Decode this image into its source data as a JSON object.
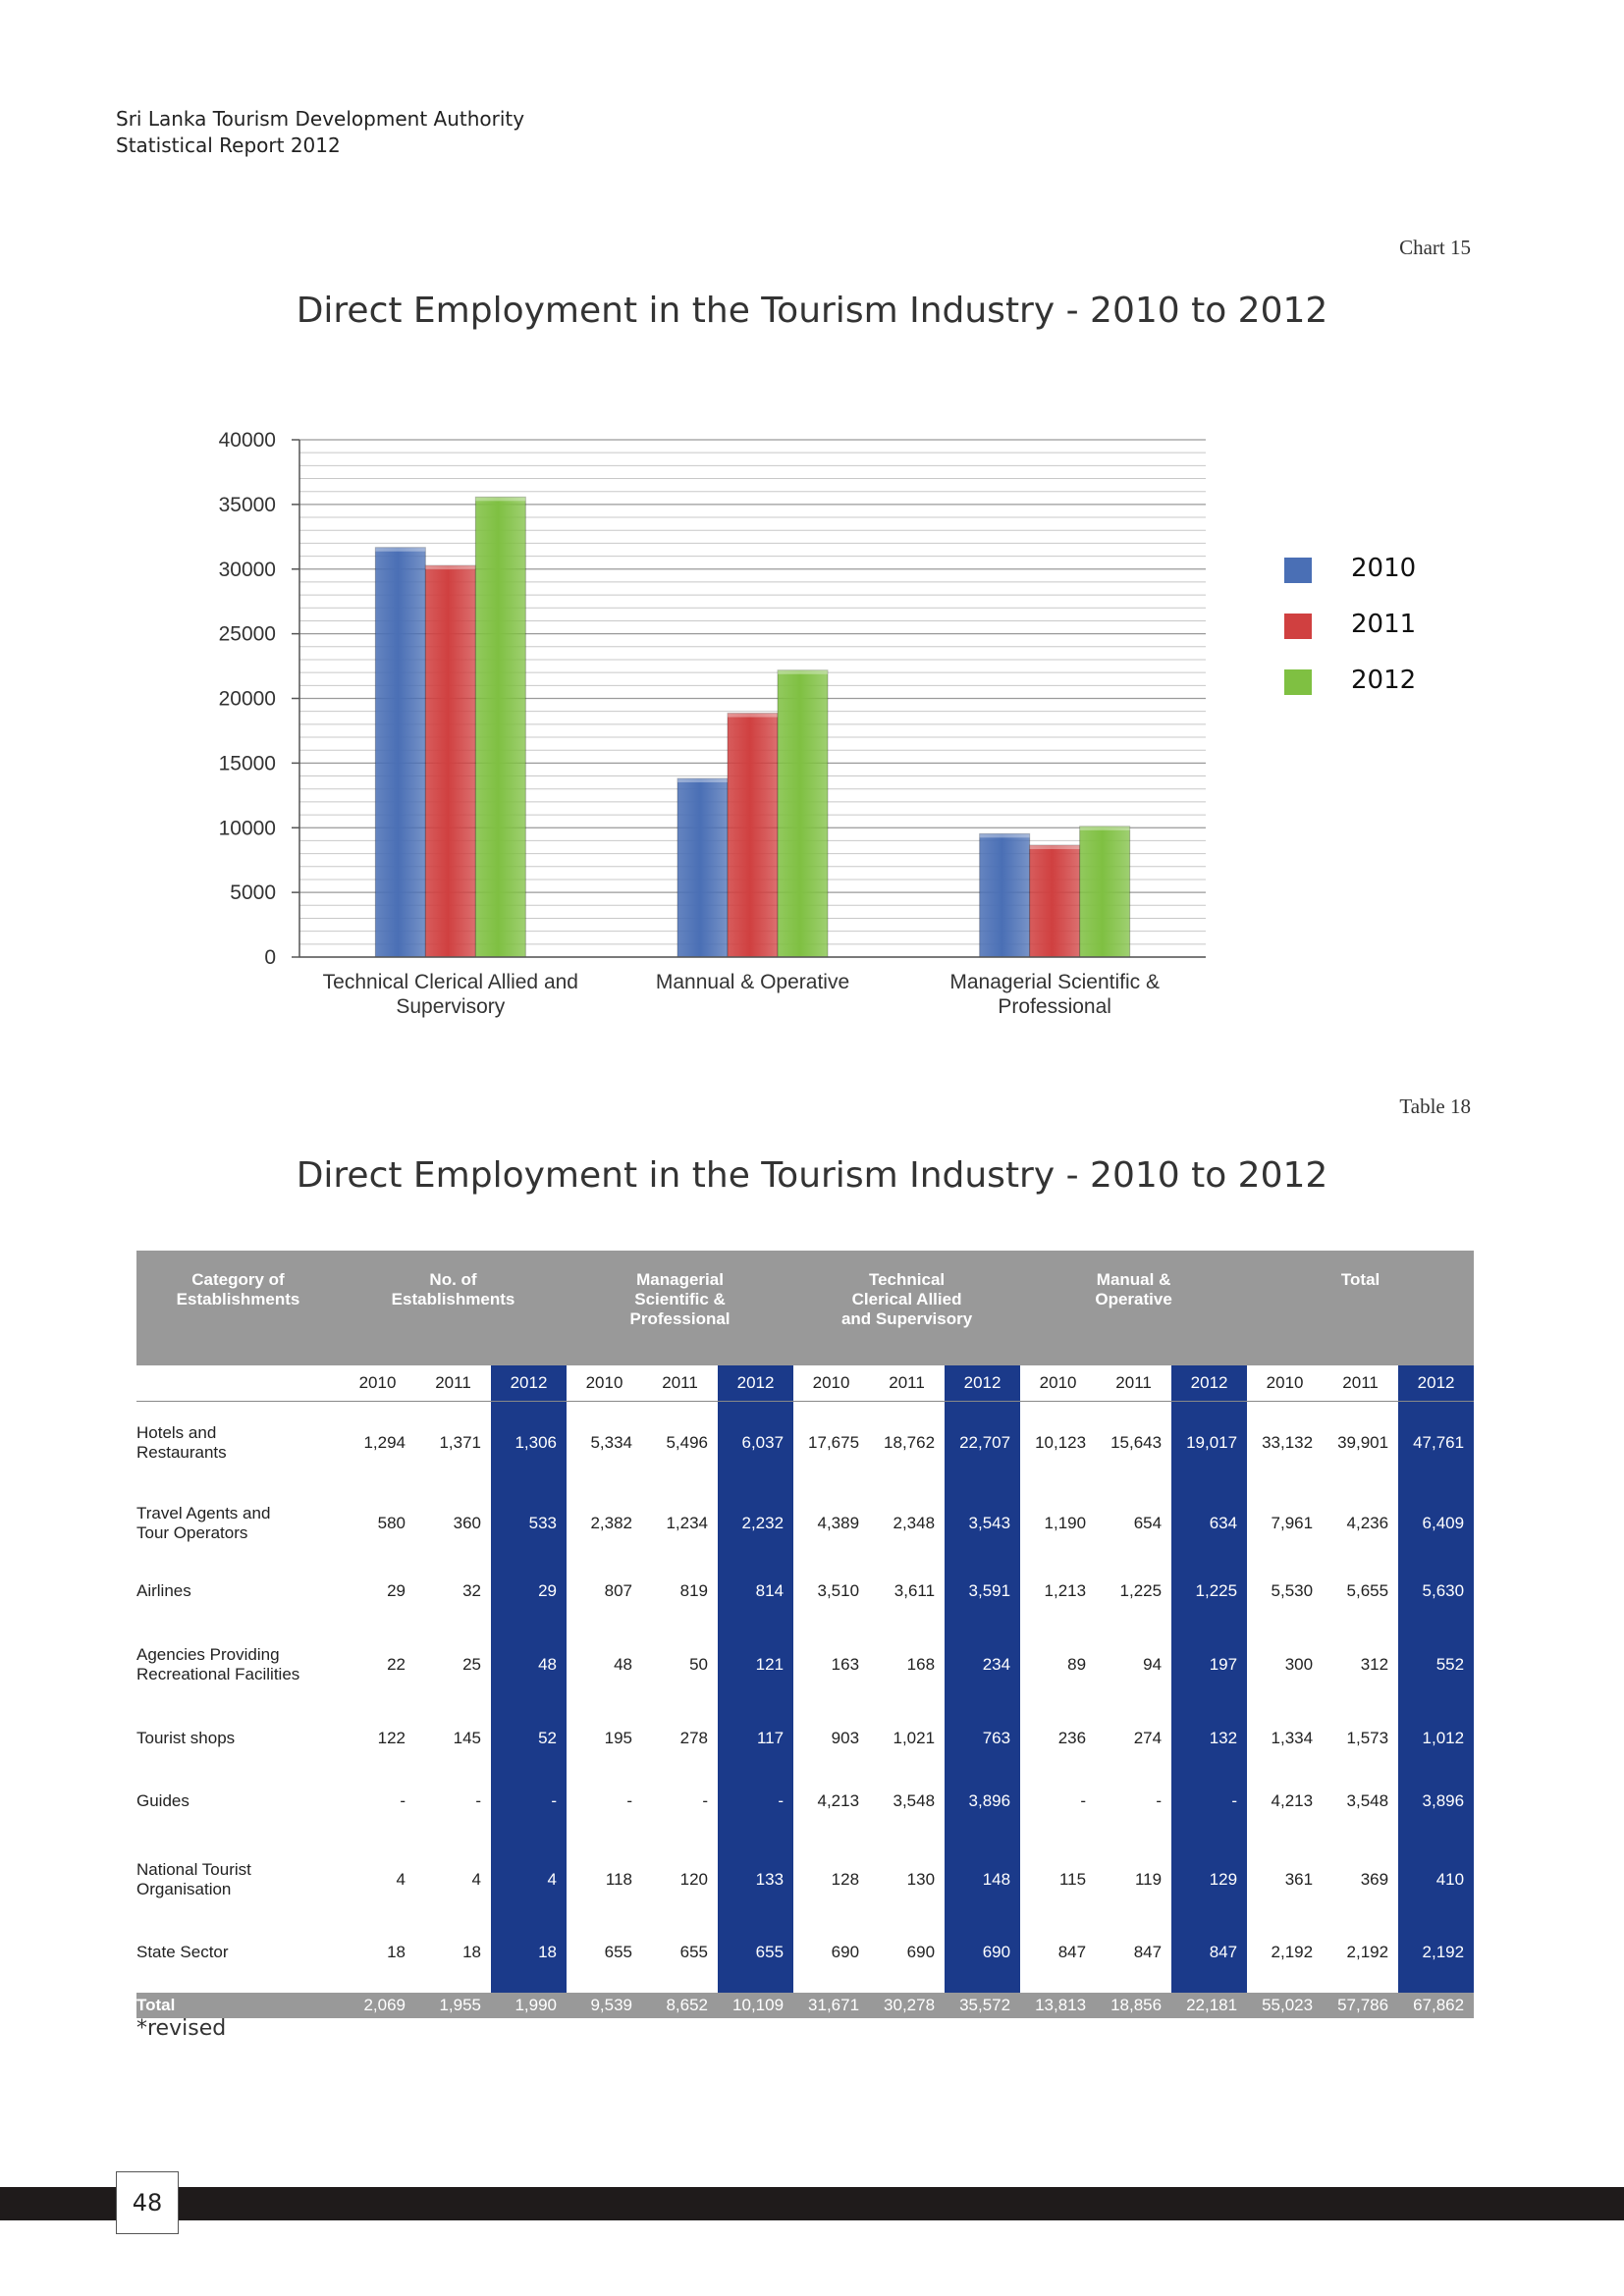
{
  "header": {
    "org": "Sri Lanka Tourism Development Authority",
    "report": "Statistical Report 2012"
  },
  "chart_ref": "Chart 15",
  "chart_title": "Direct Employment in the Tourism Industry - 2010 to 2012",
  "table_ref": "Table 18",
  "table_title": "Direct Employment in the Tourism Industry - 2010 to 2012",
  "chart_data": {
    "type": "bar",
    "title": "Direct Employment in the Tourism Industry - 2010 to 2012",
    "categories": [
      [
        "Technical Clerical Allied and",
        "Supervisory"
      ],
      [
        "Mannual & Operative"
      ],
      [
        "Managerial Scientific &",
        "Professional"
      ]
    ],
    "series": [
      {
        "name": "2010",
        "values": [
          31671,
          13813,
          9539
        ],
        "color": "#4a6fb5"
      },
      {
        "name": "2011",
        "values": [
          30278,
          18856,
          8652
        ],
        "color": "#d04040"
      },
      {
        "name": "2012",
        "values": [
          35572,
          22181,
          10109
        ],
        "color": "#7fc042"
      }
    ],
    "ylim": [
      0,
      40000
    ],
    "yticks": [
      "0",
      "5000",
      "10000",
      "15000",
      "20000",
      "25000",
      "30000",
      "35000",
      "40000"
    ],
    "ytick_values": [
      0,
      5000,
      10000,
      15000,
      20000,
      25000,
      30000,
      35000,
      40000
    ],
    "minor_step": 1000,
    "grid": true,
    "legend_position": "right"
  },
  "table": {
    "group_headers": [
      [
        "Category of",
        "Establishments"
      ],
      [
        "No. of",
        "Establishments"
      ],
      [
        "Managerial",
        "Scientific &",
        "Professional"
      ],
      [
        "Technical",
        "Clerical Allied",
        "and Supervisory"
      ],
      [
        "Manual &",
        "Operative"
      ],
      [
        "Total"
      ]
    ],
    "years": [
      "2010",
      "2011",
      "2012"
    ],
    "rows": [
      {
        "category": [
          "Hotels and",
          "Restaurants"
        ],
        "values": [
          "1,294",
          "1,371",
          "1,306",
          "5,334",
          "5,496",
          "6,037",
          "17,675",
          "18,762",
          "22,707",
          "10,123",
          "15,643",
          "19,017",
          "33,132",
          "39,901",
          "47,761"
        ]
      },
      {
        "category": [
          "Travel Agents and",
          "Tour Operators"
        ],
        "values": [
          "580",
          "360",
          "533",
          "2,382",
          "1,234",
          "2,232",
          "4,389",
          "2,348",
          "3,543",
          "1,190",
          "654",
          "634",
          "7,961",
          "4,236",
          "6,409"
        ]
      },
      {
        "category": [
          "Airlines"
        ],
        "values": [
          "29",
          "32",
          "29",
          "807",
          "819",
          "814",
          "3,510",
          "3,611",
          "3,591",
          "1,213",
          "1,225",
          "1,225",
          "5,530",
          "5,655",
          "5,630"
        ]
      },
      {
        "category": [
          "Agencies Providing",
          "Recreational Facilities"
        ],
        "values": [
          "22",
          "25",
          "48",
          "48",
          "50",
          "121",
          "163",
          "168",
          "234",
          "89",
          "94",
          "197",
          "300",
          "312",
          "552"
        ]
      },
      {
        "category": [
          "Tourist shops"
        ],
        "values": [
          "122",
          "145",
          "52",
          "195",
          "278",
          "117",
          "903",
          "1,021",
          "763",
          "236",
          "274",
          "132",
          "1,334",
          "1,573",
          "1,012"
        ]
      },
      {
        "category": [
          "Guides"
        ],
        "values": [
          "-",
          "-",
          "-",
          "-",
          "-",
          "-",
          "4,213",
          "3,548",
          "3,896",
          "-",
          "-",
          "-",
          "4,213",
          "3,548",
          "3,896"
        ]
      },
      {
        "category": [
          "National Tourist",
          "Organisation"
        ],
        "values": [
          "4",
          "4",
          "4",
          "118",
          "120",
          "133",
          "128",
          "130",
          "148",
          "115",
          "119",
          "129",
          "361",
          "369",
          "410"
        ]
      },
      {
        "category": [
          "State Sector"
        ],
        "values": [
          "18",
          "18",
          "18",
          "655",
          "655",
          "655",
          "690",
          "690",
          "690",
          "847",
          "847",
          "847",
          "2,192",
          "2,192",
          "2,192"
        ]
      }
    ],
    "total": {
      "label": "Total",
      "values": [
        "2,069",
        "1,955",
        "1,990",
        "9,539",
        "8,652",
        "10,109",
        "31,671",
        "30,278",
        "35,572",
        "13,813",
        "18,856",
        "22,181",
        "55,023",
        "57,786",
        "67,862"
      ]
    }
  },
  "note": "*revised",
  "page_number": "48"
}
